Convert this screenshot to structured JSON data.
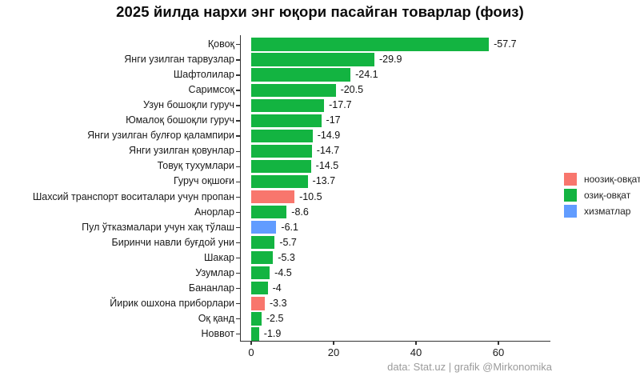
{
  "chart_data": {
    "type": "bar",
    "orientation": "horizontal",
    "title": "2025 йилда нархи энг юқори пасайган товарлар (фоиз)",
    "categories": [
      "Қовоқ",
      "Янги узилган тарвузлар",
      "Шафтолилар",
      "Саримсоқ",
      "Узун бошоқли гуруч",
      "Юмалоқ бошоқли гуруч",
      "Янги узилган булғор қалампири",
      "Янги узилган қовунлар",
      "Товуқ тухумлари",
      "Гуруч оқшоғи",
      "Шахсий транспорт воситалари учун пропан",
      "Анорлар",
      "Пул ўтказмалари учун хақ тўлаш",
      "Биринчи навли буғдой уни",
      "Шакар",
      "Узумлар",
      "Бананлар",
      "Йирик ошхона приборлари",
      "Оқ қанд",
      "Новвот"
    ],
    "values": [
      -57.7,
      -29.9,
      -24.1,
      -20.5,
      -17.7,
      -17,
      -14.9,
      -14.7,
      -14.5,
      -13.7,
      -10.5,
      -8.6,
      -6.1,
      -5.7,
      -5.3,
      -4.5,
      -4,
      -3.3,
      -2.5,
      -1.9
    ],
    "groups": [
      "food",
      "food",
      "food",
      "food",
      "food",
      "food",
      "food",
      "food",
      "food",
      "food",
      "nonfood",
      "food",
      "services",
      "food",
      "food",
      "food",
      "food",
      "nonfood",
      "food",
      "food"
    ],
    "palette": {
      "nonfood": "#f8766d",
      "food": "#13b441",
      "services": "#619cff"
    },
    "legend": [
      {
        "label": "ноозиқ-овқат",
        "group": "nonfood"
      },
      {
        "label": "озиқ-овқат",
        "group": "food"
      },
      {
        "label": "хизматлар",
        "group": "services"
      }
    ],
    "xticks": [
      0,
      20,
      40,
      60
    ],
    "xlim": [
      0,
      72.8
    ],
    "grid": false,
    "legend_position": "right",
    "value_labels": true
  },
  "footer": {
    "credit": "data: Stat.uz | grafik @Mirkonomika"
  }
}
